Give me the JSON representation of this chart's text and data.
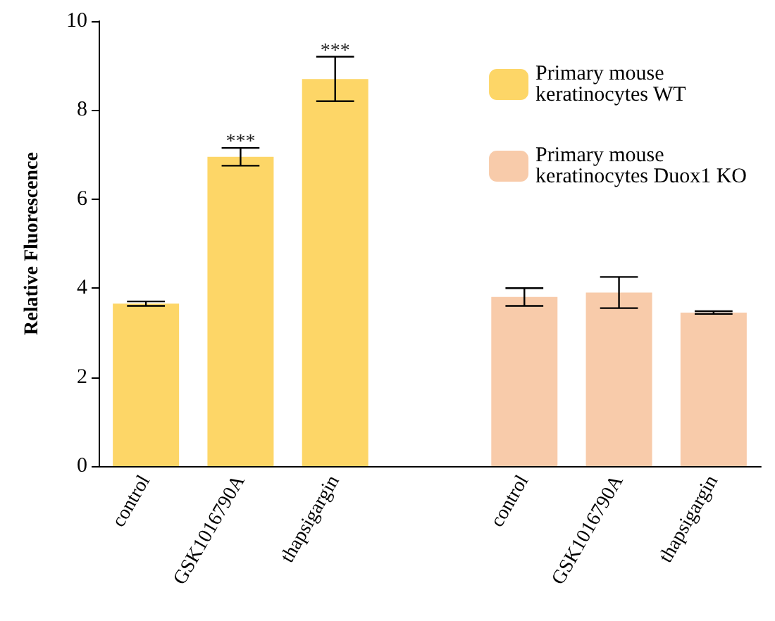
{
  "chart_data": {
    "type": "bar",
    "ylabel": "Relative Fluorescence",
    "categories": [
      "control",
      "GSK1016790A",
      "thapsigargin",
      null,
      "control",
      "GSK1016790A",
      "thapsigargin"
    ],
    "series": [
      {
        "name": "Primary mouse keratinocytes WT",
        "color": "#fdd667",
        "values": [
          3.65,
          6.95,
          8.7,
          null,
          null,
          null,
          null
        ],
        "errors": [
          0.05,
          0.2,
          0.5,
          null,
          null,
          null,
          null
        ]
      },
      {
        "name": "Primary mouse keratinocytes Duox1 KO",
        "color": "#f8cbaa",
        "values": [
          null,
          null,
          null,
          null,
          3.8,
          3.9,
          3.45
        ],
        "errors": [
          null,
          null,
          null,
          null,
          0.2,
          0.35,
          0.03
        ]
      }
    ],
    "ylim": [
      0,
      10
    ],
    "yticks": [
      0,
      2,
      4,
      6,
      8,
      10
    ],
    "grid": false,
    "legend": "top right",
    "annotations": [
      "***",
      "***"
    ]
  }
}
